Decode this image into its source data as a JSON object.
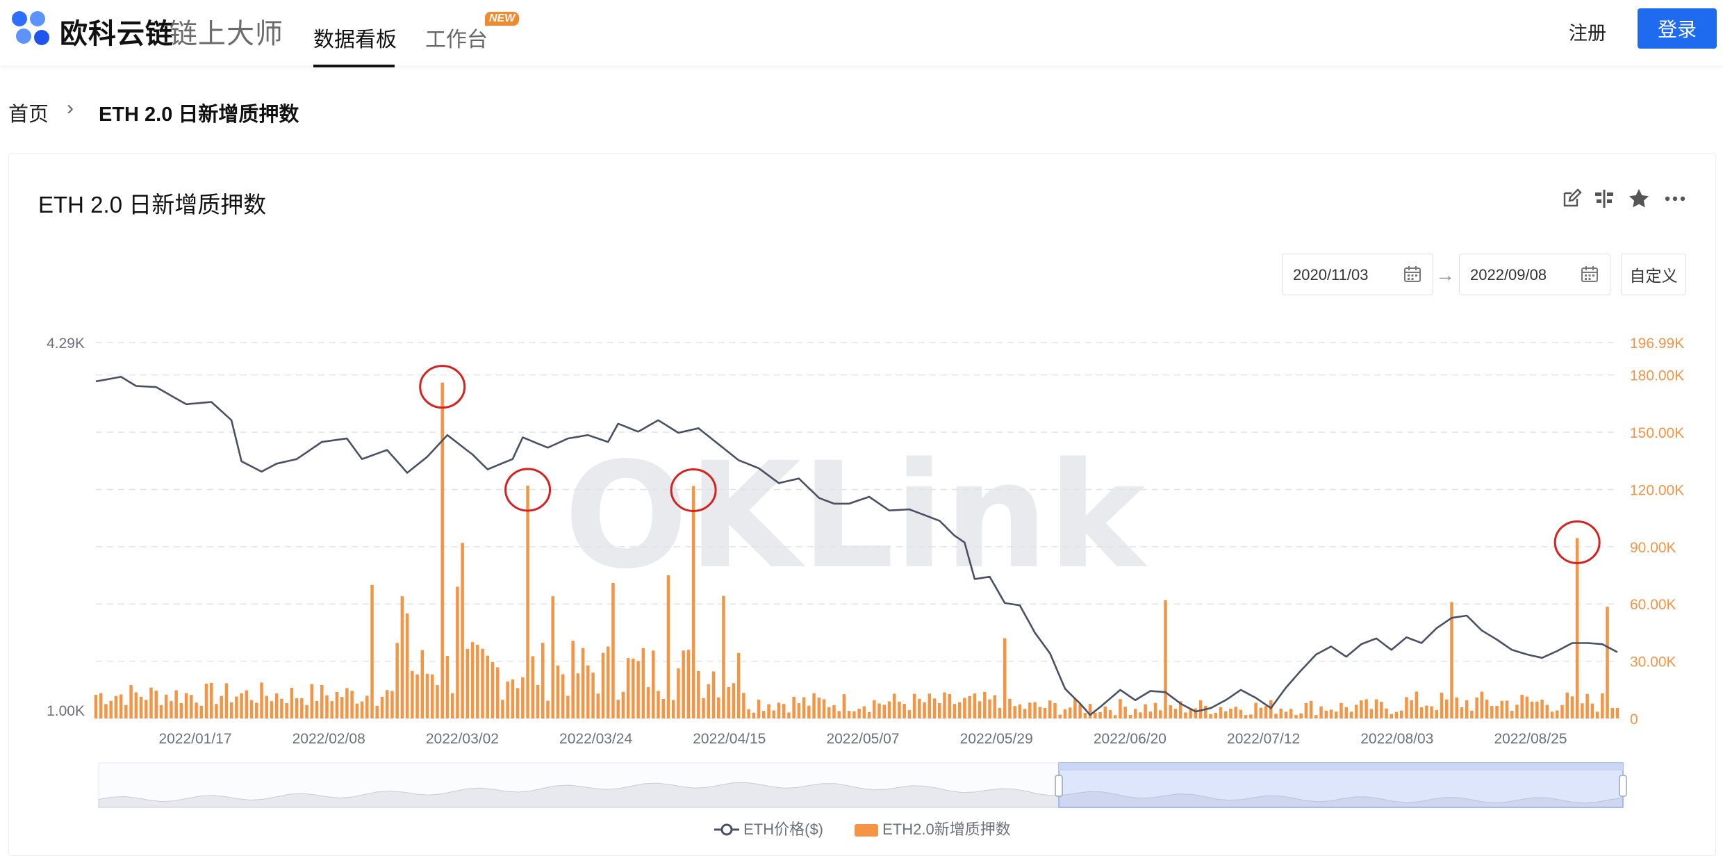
{
  "header": {
    "brand": "欧科云链",
    "brand_sub": "链上大师",
    "nav": [
      {
        "label": "数据看板",
        "active": true
      },
      {
        "label": "工作台",
        "badge": "NEW"
      }
    ],
    "register": "注册",
    "login": "登录"
  },
  "breadcrumb": {
    "home": "首页",
    "separator": "›",
    "current": "ETH 2.0 日新增质押数"
  },
  "card": {
    "title": "ETH 2.0 日新增质押数",
    "tools": [
      "edit-icon",
      "split-icon",
      "star-icon",
      "more-icon"
    ],
    "date_start": "2020/11/03",
    "date_end": "2022/09/08",
    "date_arrow": "→",
    "custom_label": "自定义"
  },
  "colors": {
    "accent": "#1f6bef",
    "bar": "#f49445",
    "line": "#4a5063",
    "highlight_circle": "#d7211f",
    "grid": "#e0e4ea"
  },
  "chart_data": {
    "type": "bar",
    "watermark": "OKLink",
    "x_tick_labels": [
      "2022/01/17",
      "2022/02/08",
      "2022/03/02",
      "2022/03/24",
      "2022/04/15",
      "2022/05/07",
      "2022/05/29",
      "2022/06/20",
      "2022/07/12",
      "2022/08/03",
      "2022/08/25"
    ],
    "y_left": {
      "ticks": [
        "4.29K",
        "1.00K"
      ],
      "range": [
        1000,
        4290
      ]
    },
    "y_right": {
      "ticks": [
        "196.99K",
        "180.00K",
        "150.00K",
        "120.00K",
        "90.00K",
        "60.00K",
        "30.00K",
        "0"
      ],
      "range": [
        0,
        196990
      ]
    },
    "series": [
      {
        "name": "ETH价格($)",
        "type": "line",
        "axis": "left",
        "anchors": [
          [
            0,
            3950
          ],
          [
            5,
            3990
          ],
          [
            8,
            3910
          ],
          [
            12,
            3900
          ],
          [
            18,
            3750
          ],
          [
            23,
            3770
          ],
          [
            27,
            3610
          ],
          [
            29,
            3250
          ],
          [
            33,
            3160
          ],
          [
            36,
            3230
          ],
          [
            40,
            3270
          ],
          [
            45,
            3420
          ],
          [
            50,
            3450
          ],
          [
            53,
            3270
          ],
          [
            58,
            3350
          ],
          [
            62,
            3150
          ],
          [
            66,
            3290
          ],
          [
            70,
            3480
          ],
          [
            75,
            3310
          ],
          [
            78,
            3180
          ],
          [
            83,
            3270
          ],
          [
            85,
            3460
          ],
          [
            90,
            3370
          ],
          [
            94,
            3450
          ],
          [
            98,
            3480
          ],
          [
            102,
            3420
          ],
          [
            104,
            3580
          ],
          [
            108,
            3510
          ],
          [
            112,
            3610
          ],
          [
            116,
            3500
          ],
          [
            120,
            3540
          ],
          [
            124,
            3400
          ],
          [
            128,
            3260
          ],
          [
            132,
            3190
          ],
          [
            136,
            3060
          ],
          [
            140,
            3100
          ],
          [
            144,
            2930
          ],
          [
            147,
            2880
          ],
          [
            150,
            2880
          ],
          [
            154,
            2940
          ],
          [
            158,
            2820
          ],
          [
            162,
            2830
          ],
          [
            165,
            2780
          ],
          [
            168,
            2730
          ],
          [
            171,
            2600
          ],
          [
            173,
            2540
          ],
          [
            175,
            2220
          ],
          [
            178,
            2240
          ],
          [
            181,
            2010
          ],
          [
            184,
            1990
          ],
          [
            187,
            1750
          ],
          [
            190,
            1570
          ],
          [
            193,
            1260
          ],
          [
            196,
            1130
          ],
          [
            198,
            1030
          ],
          [
            200,
            1100
          ],
          [
            204,
            1250
          ],
          [
            207,
            1160
          ],
          [
            210,
            1240
          ],
          [
            213,
            1230
          ],
          [
            216,
            1130
          ],
          [
            219,
            1060
          ],
          [
            222,
            1090
          ],
          [
            225,
            1160
          ],
          [
            228,
            1250
          ],
          [
            231,
            1180
          ],
          [
            234,
            1090
          ],
          [
            237,
            1270
          ],
          [
            240,
            1420
          ],
          [
            243,
            1560
          ],
          [
            246,
            1630
          ],
          [
            249,
            1540
          ],
          [
            252,
            1650
          ],
          [
            255,
            1700
          ],
          [
            258,
            1600
          ],
          [
            261,
            1710
          ],
          [
            264,
            1660
          ],
          [
            267,
            1790
          ],
          [
            270,
            1880
          ],
          [
            273,
            1900
          ],
          [
            276,
            1770
          ],
          [
            279,
            1690
          ],
          [
            282,
            1600
          ],
          [
            285,
            1560
          ],
          [
            288,
            1530
          ],
          [
            291,
            1590
          ],
          [
            294,
            1660
          ],
          [
            297,
            1660
          ],
          [
            300,
            1650
          ],
          [
            303,
            1580
          ]
        ],
        "highlights": []
      },
      {
        "name": "ETH2.0新增质押数",
        "type": "bar",
        "axis": "right",
        "count": 304,
        "spikes": [
          [
            69,
            176000
          ],
          [
            86,
            122000
          ],
          [
            119,
            121800
          ],
          [
            295,
            94500
          ],
          [
            91,
            64000
          ],
          [
            125,
            64200
          ],
          [
            181,
            42000
          ],
          [
            213,
            62000
          ],
          [
            270,
            61000
          ],
          [
            301,
            58500
          ],
          [
            73,
            92000
          ],
          [
            72,
            69000
          ],
          [
            61,
            64000
          ],
          [
            55,
            70000
          ],
          [
            62,
            55000
          ],
          [
            103,
            71000
          ],
          [
            114,
            75000
          ]
        ],
        "highlight_indices": [
          69,
          86,
          119,
          295
        ]
      }
    ],
    "legend": [
      "ETH价格($)",
      "ETH2.0新增质押数"
    ]
  }
}
